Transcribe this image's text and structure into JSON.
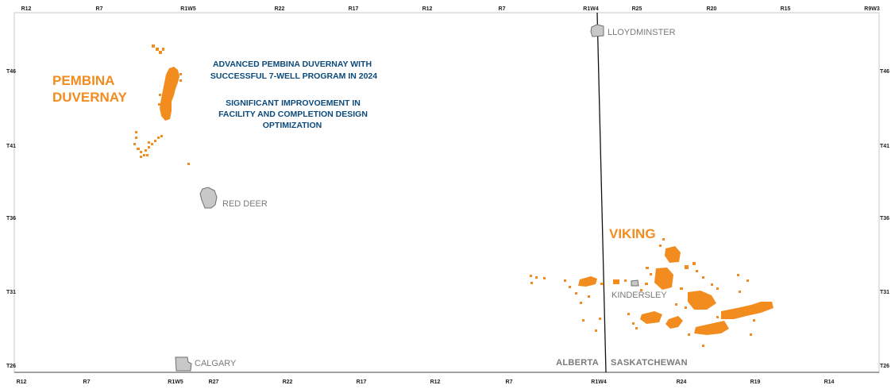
{
  "map": {
    "top_range_labels": [
      "R12",
      "R7",
      "R1W5",
      "R22",
      "R17",
      "R12",
      "R7",
      "R1W4",
      "R25",
      "R20",
      "R15",
      "R9W3"
    ],
    "bottom_range_labels": [
      "R12",
      "R7",
      "R1W5",
      "R27",
      "R22",
      "R17",
      "R12",
      "R7",
      "R1W4",
      "R24",
      "R19",
      "R14"
    ],
    "left_township_labels": [
      "T46",
      "T41",
      "T36",
      "T31",
      "T26"
    ],
    "right_township_labels": [
      "T46",
      "T41",
      "T36",
      "T31",
      "T26"
    ],
    "towns": [
      {
        "name": "LLOYDMINSTER",
        "icon": "town-boundary-icon"
      },
      {
        "name": "RED DEER",
        "icon": "town-boundary-icon"
      },
      {
        "name": "KINDERSLEY",
        "icon": "town-boundary-icon"
      },
      {
        "name": "CALGARY",
        "icon": "town-boundary-icon"
      }
    ],
    "provinces": {
      "left": "ALBERTA",
      "right": "SASKATCHEWAN"
    },
    "plays": {
      "pembina": {
        "line1": "PEMBINA",
        "line2": "DUVERNAY"
      },
      "viking": {
        "name": "VIKING"
      }
    },
    "annotation": {
      "block1": [
        "ADVANCED PEMBINA DUVERNAY WITH",
        "SUCCESSFUL 7-WELL PROGRAM IN 2024"
      ],
      "block2": [
        "SIGNIFICANT IMPROVOEMENT IN",
        "FACILITY AND COMPLETION DESIGN",
        "OPTIMIZATION"
      ]
    },
    "colors": {
      "land_holdings": "#f28c1e",
      "annotation_text": "#0b4a7a",
      "town_fill": "#c8c8c8",
      "town_text": "#7a7a7a",
      "border_line": "#111111"
    }
  }
}
